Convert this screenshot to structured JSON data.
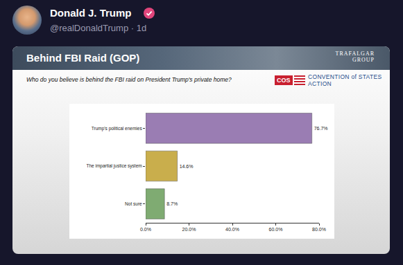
{
  "post": {
    "author": "Donald J. Trump",
    "handle": "@realDonaldTrump · 1d"
  },
  "logo": [
    "TRAFALGAR",
    "GROUP"
  ],
  "sponsor": {
    "abbr": "COS",
    "name": "CONVENTION of STATES ACTION"
  },
  "chart_data": {
    "type": "bar",
    "orientation": "horizontal",
    "title": "Behind FBI Raid (GOP)",
    "subtitle": "Who do you believe is behind the FBI raid on President Trump's private home?",
    "categories": [
      "Trump's political enemies",
      "The impartial justice system",
      "Not sure"
    ],
    "values": [
      76.7,
      14.6,
      8.7
    ],
    "value_labels": [
      "76.7%",
      "14.6%",
      "8.7%"
    ],
    "data_labels": true,
    "colors": [
      "#9a7db3",
      "#c9ae4c",
      "#7fab72"
    ],
    "xlim": [
      0,
      80
    ],
    "xticks": [
      {
        "value": 0,
        "label": "0.0%"
      },
      {
        "value": 20,
        "label": "20.0%"
      },
      {
        "value": 40,
        "label": "40.0%"
      },
      {
        "value": 60,
        "label": "60.0%"
      },
      {
        "value": 80,
        "label": "80.0%"
      }
    ],
    "grid": false
  }
}
